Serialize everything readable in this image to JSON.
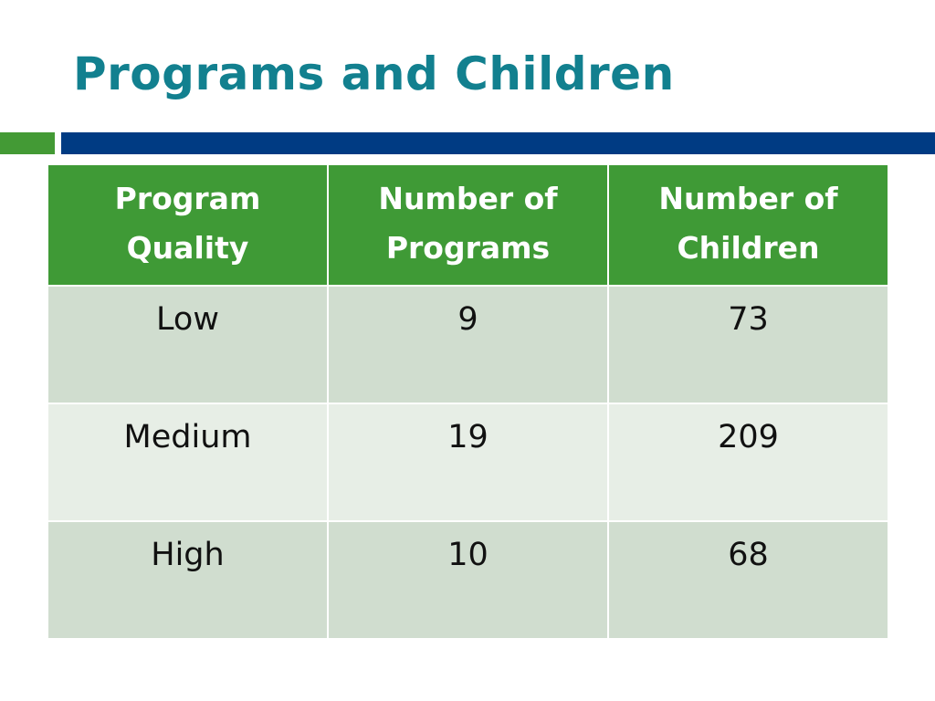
{
  "slide": {
    "title": "Programs and Children"
  },
  "colors": {
    "title": "#12808f",
    "accent_green": "#439a35",
    "accent_blue": "#003b83",
    "header_fill": "#3f9a36",
    "row_dark": "#d0ddcf",
    "row_light": "#e7eee6"
  },
  "table": {
    "headers": [
      {
        "line1": "Program",
        "line2": "Quality"
      },
      {
        "line1": "Number of",
        "line2": "Programs"
      },
      {
        "line1": "Number of",
        "line2": "Children"
      }
    ],
    "rows": [
      [
        "Low",
        "9",
        "73"
      ],
      [
        "Medium",
        "19",
        "209"
      ],
      [
        "High",
        "10",
        "68"
      ]
    ]
  }
}
